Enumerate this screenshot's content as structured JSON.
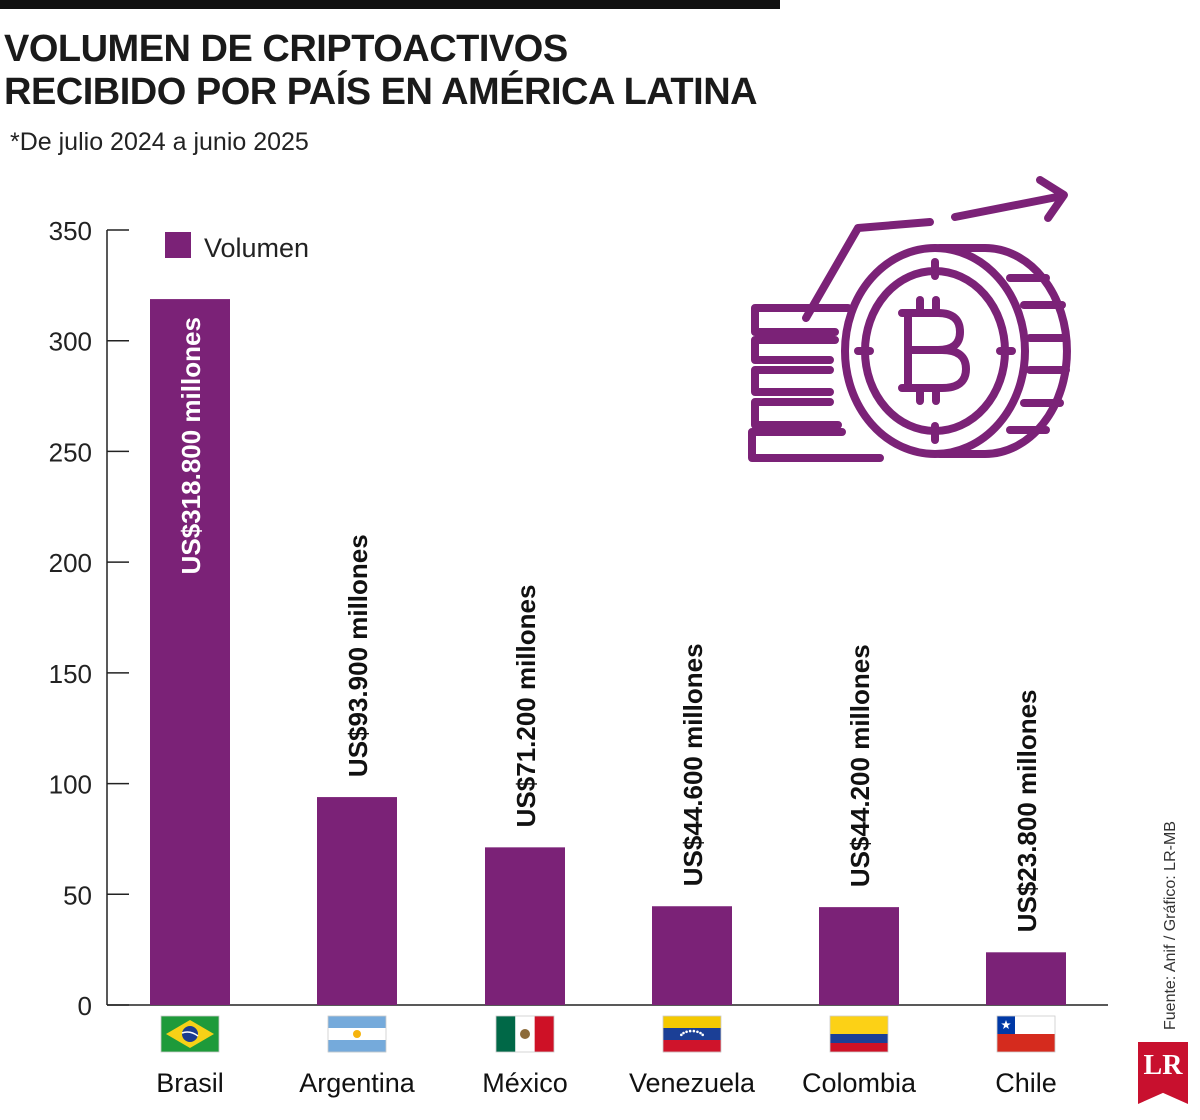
{
  "header": {
    "title_line1": "VOLUMEN DE CRIPTOACTIVOS",
    "title_line2": "RECIBIDO POR PAÍS EN AMÉRICA LATINA",
    "subtitle": "*De julio 2024 a junio 2025"
  },
  "footer": {
    "source": "Fuente: Anif / Gráfico: LR-MB",
    "logo_text": "LR"
  },
  "colors": {
    "bar": "#7b2277",
    "axis": "#222222",
    "logo": "#c8102e"
  },
  "icons": [
    "bitcoin-coins-growth-icon",
    "flag-brazil-icon",
    "flag-argentina-icon",
    "flag-mexico-icon",
    "flag-venezuela-icon",
    "flag-colombia-icon",
    "flag-chile-icon"
  ],
  "chart_data": {
    "type": "bar",
    "title": "VOLUMEN DE CRIPTOACTIVOS RECIBIDO POR PAÍS EN AMÉRICA LATINA",
    "subtitle": "*De julio 2024 a junio 2025",
    "categories": [
      "Brasil",
      "Argentina",
      "México",
      "Venezuela",
      "Colombia",
      "Chile"
    ],
    "series": [
      {
        "name": "Volumen",
        "values": [
          318.8,
          93.9,
          71.2,
          44.6,
          44.2,
          23.8
        ],
        "labels": [
          "US$318.800 millones",
          "US$93.900 millones",
          "US$71.200 millones",
          "US$44.600 millones",
          "US$44.200 millones",
          "US$23.800 millones"
        ]
      }
    ],
    "yticks": [
      0,
      50,
      100,
      150,
      200,
      250,
      300,
      350
    ],
    "ylim": [
      0,
      350
    ],
    "xlabel": "",
    "ylabel": "",
    "grid": false,
    "legend": "top-left",
    "flags": [
      "brazil",
      "argentina",
      "mexico",
      "venezuela",
      "colombia",
      "chile"
    ]
  }
}
